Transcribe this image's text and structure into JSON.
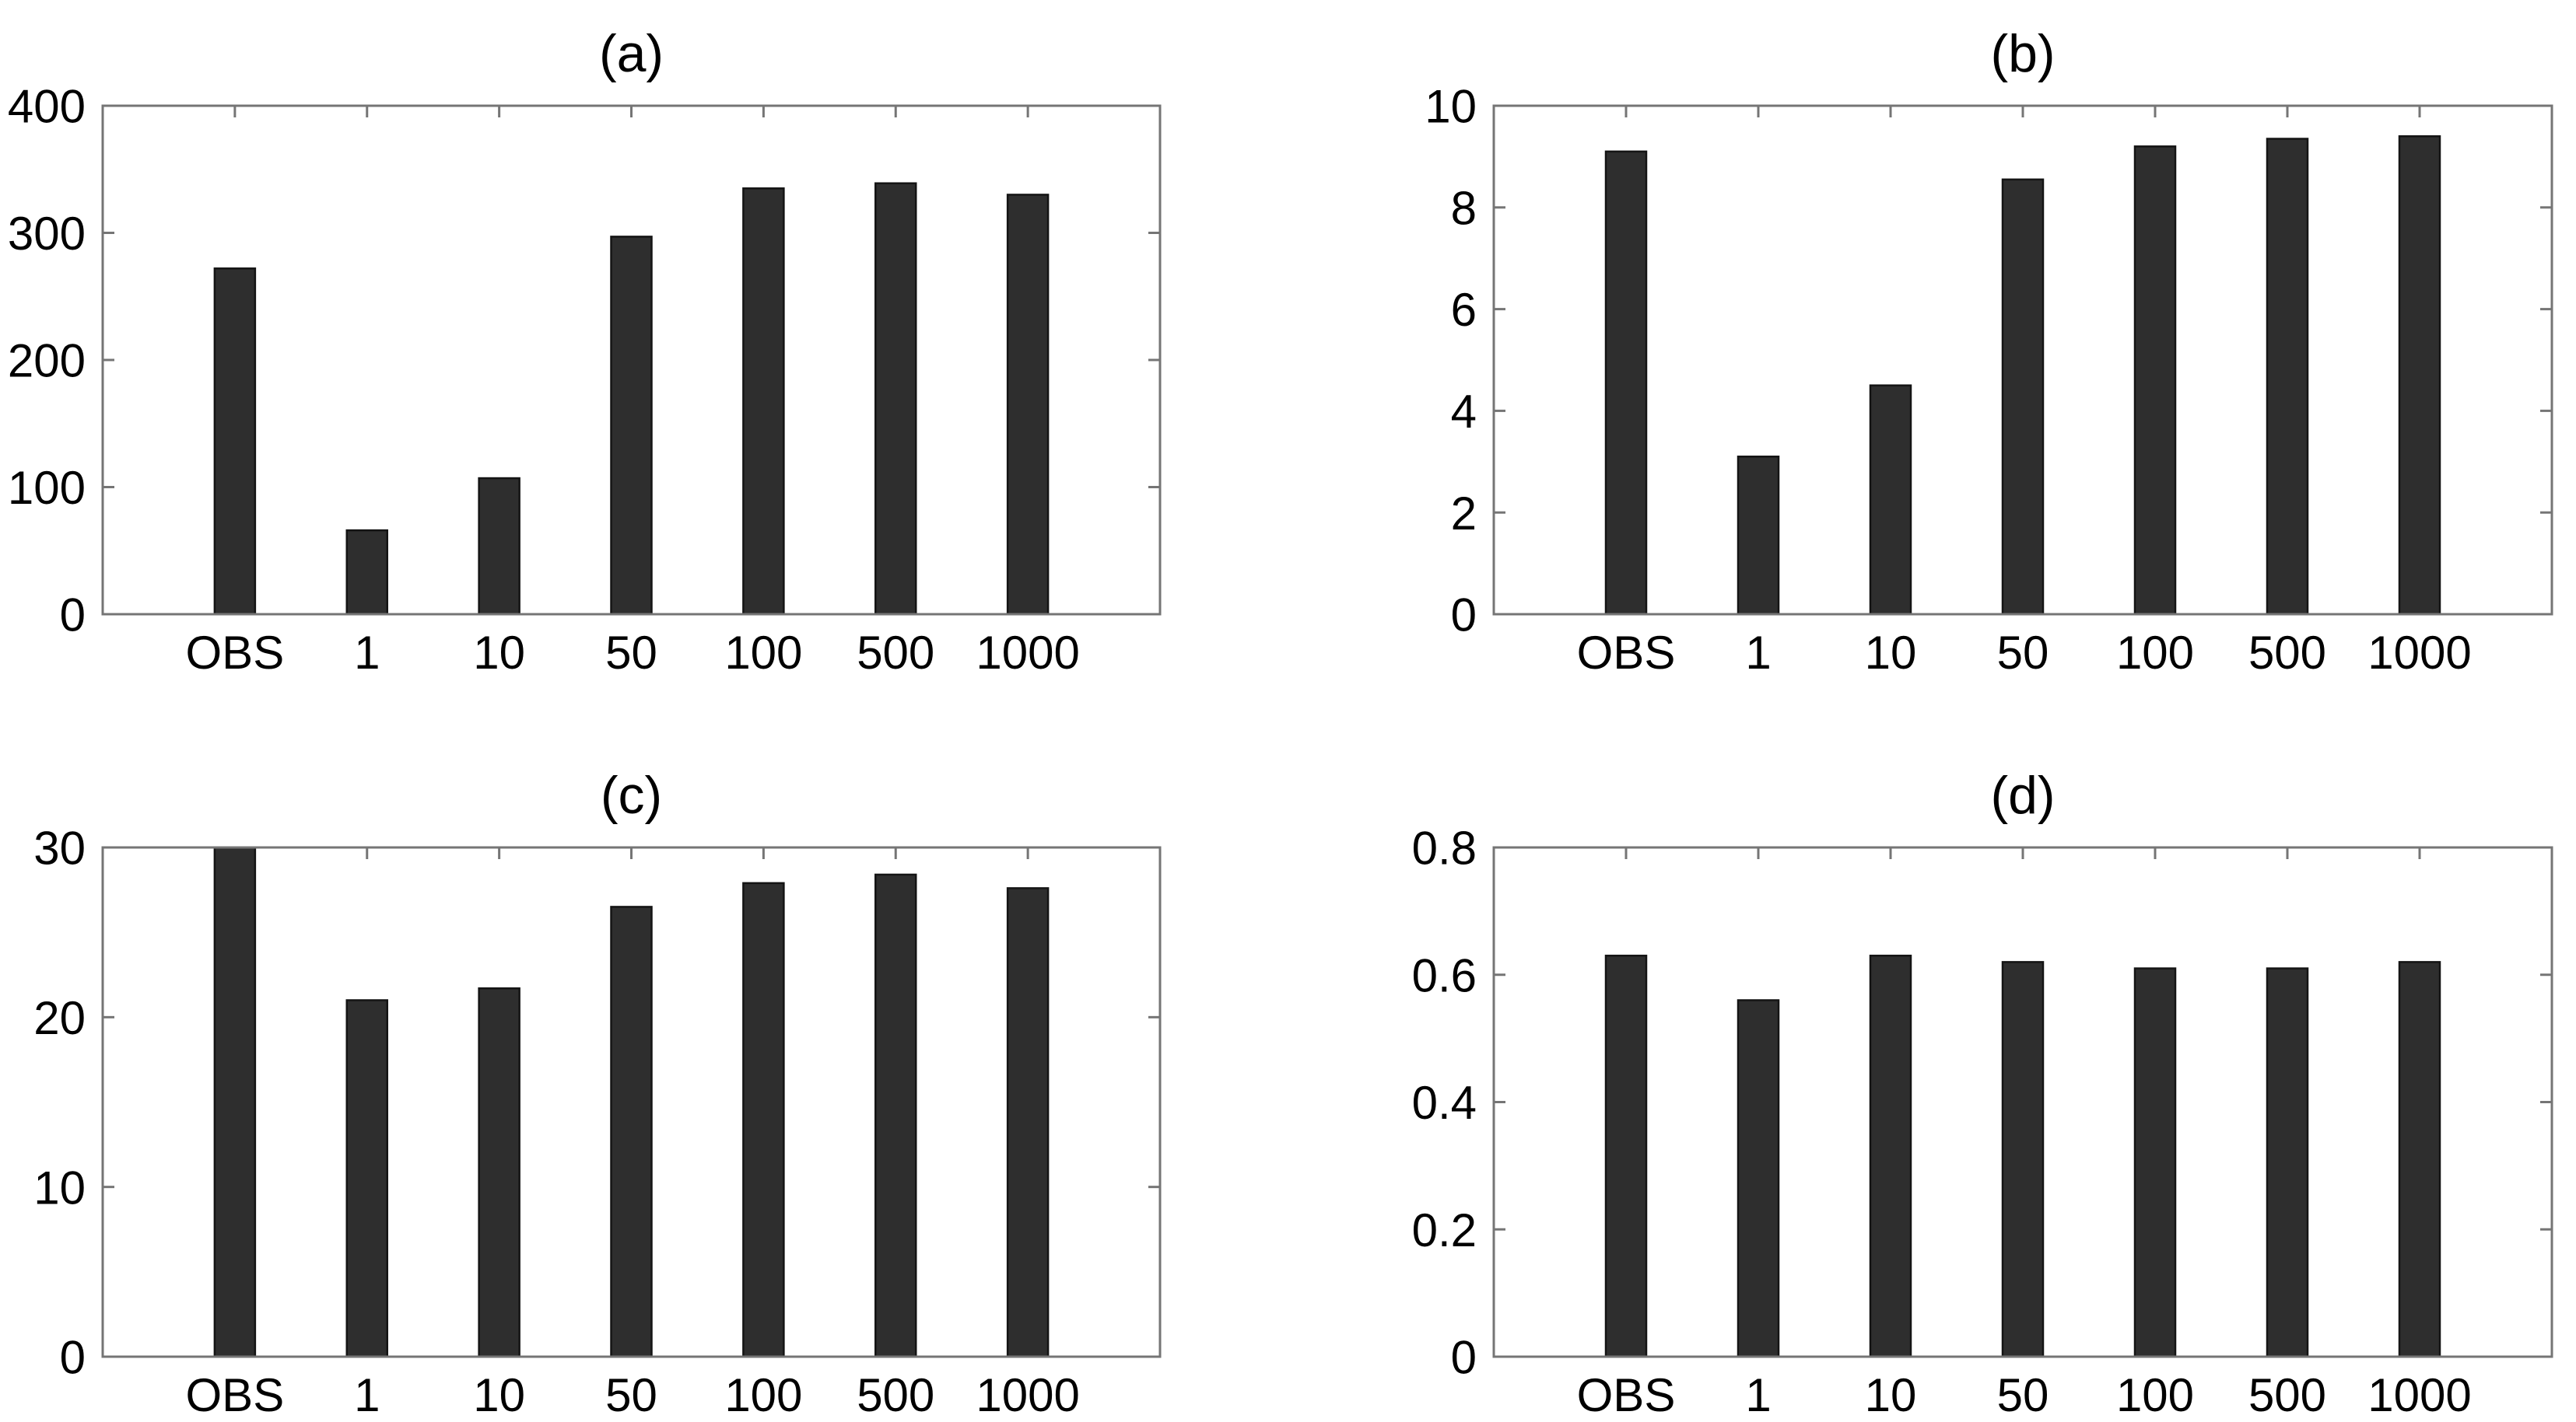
{
  "figure": {
    "background": "#ffffff",
    "bar_fill_color": "#2e2e2e",
    "bar_edge_color": "#141414",
    "axis_color": "#757575",
    "text_color": "#000000"
  },
  "chart_data": [
    {
      "id": "a",
      "type": "bar",
      "title": "(a)",
      "categories": [
        "OBS",
        "1",
        "10",
        "50",
        "100",
        "500",
        "1000"
      ],
      "values": [
        272,
        66,
        107,
        297,
        335,
        339,
        330
      ],
      "xlabel": "",
      "ylabel": "",
      "ylim": [
        0,
        400
      ],
      "yticks": [
        0,
        100,
        200,
        300,
        400
      ],
      "ytick_labels": [
        "0",
        "100",
        "200",
        "300",
        "400"
      ],
      "grid": false,
      "legend": null
    },
    {
      "id": "b",
      "type": "bar",
      "title": "(b)",
      "categories": [
        "OBS",
        "1",
        "10",
        "50",
        "100",
        "500",
        "1000"
      ],
      "values": [
        9.1,
        3.1,
        4.5,
        8.55,
        9.2,
        9.35,
        9.4
      ],
      "xlabel": "",
      "ylabel": "",
      "ylim": [
        0,
        10
      ],
      "yticks": [
        0,
        2,
        4,
        6,
        8,
        10
      ],
      "ytick_labels": [
        "0",
        "2",
        "4",
        "6",
        "8",
        "10"
      ],
      "grid": false,
      "legend": null
    },
    {
      "id": "c",
      "type": "bar",
      "title": "(c)",
      "categories": [
        "OBS",
        "1",
        "10",
        "50",
        "100",
        "500",
        "1000"
      ],
      "values": [
        30,
        21,
        21.7,
        26.5,
        27.9,
        28.4,
        27.6
      ],
      "xlabel": "",
      "ylabel": "",
      "ylim": [
        0,
        30
      ],
      "yticks": [
        0,
        10,
        20,
        30
      ],
      "ytick_labels": [
        "0",
        "10",
        "20",
        "30"
      ],
      "grid": false,
      "legend": null
    },
    {
      "id": "d",
      "type": "bar",
      "title": "(d)",
      "categories": [
        "OBS",
        "1",
        "10",
        "50",
        "100",
        "500",
        "1000"
      ],
      "values": [
        0.63,
        0.56,
        0.63,
        0.62,
        0.61,
        0.61,
        0.62
      ],
      "xlabel": "",
      "ylabel": "",
      "ylim": [
        0,
        0.8
      ],
      "yticks": [
        0,
        0.2,
        0.4,
        0.6,
        0.8
      ],
      "ytick_labels": [
        "0",
        "0.2",
        "0.4",
        "0.6",
        "0.8"
      ],
      "grid": false,
      "legend": null
    }
  ]
}
